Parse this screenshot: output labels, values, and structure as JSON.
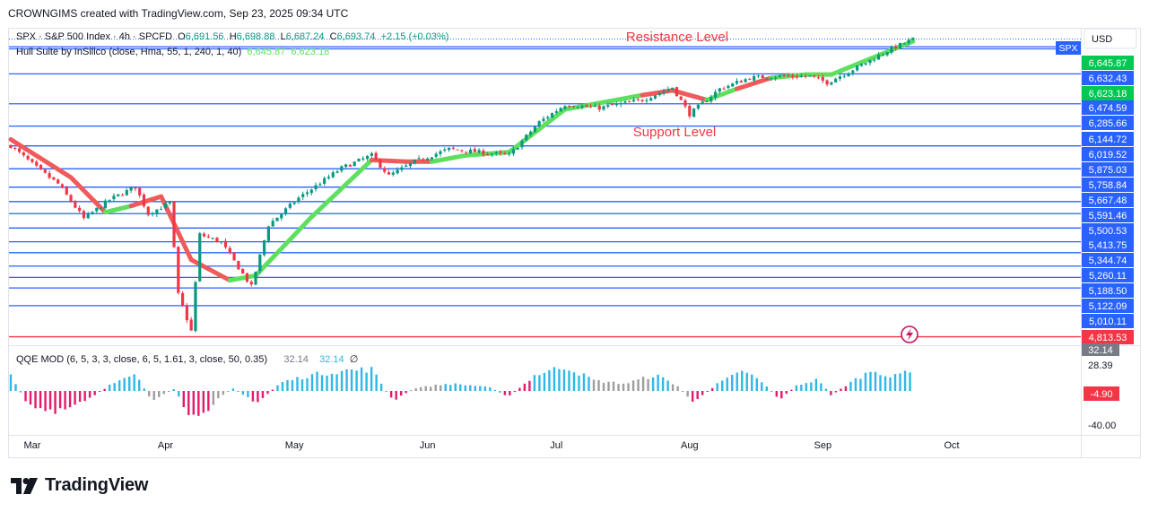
{
  "header": {
    "text": "CROWNGIMS created with TradingView.com, Sep 23, 2025 09:34 UTC"
  },
  "legend": {
    "symbol_desc": "SPX · S&P 500 Index · 4h · SPCFD",
    "o_label": "O",
    "o_value": "6,691.56",
    "h_label": "H",
    "h_value": "6,698.88",
    "l_label": "L",
    "l_value": "6,687.24",
    "c_label": "C",
    "c_value": "6,693.74",
    "change": "+2.15 (+0.03%)",
    "hull_name": "Hull Suite by InSilico (close, Hma, 55, 1, 240, 1, 40)",
    "hull_v1": "6,645.87",
    "hull_v2": "6,623.18",
    "qqe_name": "QQE MOD (6, 5, 3, 3, close, 6, 5, 1.61, 3, close, 50, 0.35)",
    "qqe_v1": "32.14",
    "qqe_v2": "32.14",
    "qqe_v3": "∅"
  },
  "annotations": {
    "resistance": "Resistance Level",
    "support": "Support Level"
  },
  "price_axis": {
    "currency": "USD",
    "symbol_tag": "SPX"
  },
  "colors": {
    "up": "#089981",
    "down": "#f23645",
    "level": "#2962ff",
    "hull_up": "#5ee05e",
    "hull_down": "#f05a5a",
    "qqe_up": "#2eb8e6",
    "qqe_down": "#e6196b",
    "qqe_neutral": "#9e9e9e",
    "red_line": "#f23645",
    "label_green": "#00c853"
  },
  "footer": {
    "logo_text": "TradingView"
  },
  "chart_data": {
    "type": "candlestick",
    "timeframe": "4h",
    "x_ticks": [
      "Mar",
      "Apr",
      "May",
      "Jun",
      "Jul",
      "Aug",
      "Sep",
      "Oct"
    ],
    "y_range": [
      4760,
      6760
    ],
    "horizontal_levels": [
      6632.43,
      6474.59,
      6285.66,
      6144.72,
      6019.52,
      5875.03,
      5758.84,
      5667.48,
      5591.46,
      5500.53,
      5413.75,
      5344.74,
      5260.11,
      5188.5,
      5122.09,
      5010.11
    ],
    "red_level": 4813.53,
    "price_labels": [
      {
        "value": "6,645.87",
        "style": "green"
      },
      {
        "value": "6,632.43",
        "style": "blue"
      },
      {
        "value": "6,623.18",
        "style": "green"
      },
      {
        "value": "6,474.59",
        "style": "blue"
      },
      {
        "value": "6,285.66",
        "style": "blue"
      },
      {
        "value": "6,144.72",
        "style": "blue"
      },
      {
        "value": "6,019.52",
        "style": "blue"
      },
      {
        "value": "5,875.03",
        "style": "blue"
      },
      {
        "value": "5,758.84",
        "style": "blue"
      },
      {
        "value": "5,667.48",
        "style": "blue"
      },
      {
        "value": "5,591.46",
        "style": "blue"
      },
      {
        "value": "5,500.53",
        "style": "blue"
      },
      {
        "value": "5,413.75",
        "style": "blue"
      },
      {
        "value": "5,344.74",
        "style": "blue"
      },
      {
        "value": "5,260.11",
        "style": "blue"
      },
      {
        "value": "5,188.50",
        "style": "blue"
      },
      {
        "value": "5,122.09",
        "style": "blue"
      },
      {
        "value": "5,010.11",
        "style": "blue"
      },
      {
        "value": "4,813.53",
        "style": "red"
      }
    ],
    "price_path": [
      [
        "2025-02-24",
        6020
      ],
      [
        "2025-03-03",
        5860
      ],
      [
        "2025-03-07",
        5780
      ],
      [
        "2025-03-13",
        5560
      ],
      [
        "2025-03-19",
        5680
      ],
      [
        "2025-03-25",
        5760
      ],
      [
        "2025-03-28",
        5590
      ],
      [
        "2025-04-02",
        5660
      ],
      [
        "2025-04-04",
        5080
      ],
      [
        "2025-04-07",
        4850
      ],
      [
        "2025-04-09",
        5460
      ],
      [
        "2025-04-14",
        5410
      ],
      [
        "2025-04-21",
        5130
      ],
      [
        "2025-04-25",
        5520
      ],
      [
        "2025-05-02",
        5690
      ],
      [
        "2025-05-12",
        5880
      ],
      [
        "2025-05-19",
        5960
      ],
      [
        "2025-05-23",
        5830
      ],
      [
        "2025-05-29",
        5920
      ],
      [
        "2025-06-06",
        6000
      ],
      [
        "2025-06-13",
        5980
      ],
      [
        "2025-06-20",
        5960
      ],
      [
        "2025-06-27",
        6170
      ],
      [
        "2025-07-03",
        6280
      ],
      [
        "2025-07-11",
        6260
      ],
      [
        "2025-07-21",
        6310
      ],
      [
        "2025-07-28",
        6390
      ],
      [
        "2025-08-01",
        6220
      ],
      [
        "2025-08-08",
        6380
      ],
      [
        "2025-08-15",
        6450
      ],
      [
        "2025-08-22",
        6460
      ],
      [
        "2025-08-29",
        6460
      ],
      [
        "2025-09-02",
        6420
      ],
      [
        "2025-09-10",
        6530
      ],
      [
        "2025-09-16",
        6620
      ],
      [
        "2025-09-22",
        6694
      ]
    ],
    "hull_path": [
      [
        "2025-02-24",
        6060,
        "down"
      ],
      [
        "2025-03-10",
        5820,
        "down"
      ],
      [
        "2025-03-18",
        5600,
        "down"
      ],
      [
        "2025-03-24",
        5640,
        "up"
      ],
      [
        "2025-03-31",
        5700,
        "down"
      ],
      [
        "2025-04-07",
        5300,
        "down"
      ],
      [
        "2025-04-16",
        5170,
        "down"
      ],
      [
        "2025-04-22",
        5200,
        "up"
      ],
      [
        "2025-05-05",
        5570,
        "up"
      ],
      [
        "2025-05-19",
        5930,
        "up"
      ],
      [
        "2025-05-27",
        5920,
        "down"
      ],
      [
        "2025-06-02",
        5920,
        "down"
      ],
      [
        "2025-06-10",
        5960,
        "up"
      ],
      [
        "2025-06-20",
        5980,
        "up"
      ],
      [
        "2025-07-03",
        6250,
        "up"
      ],
      [
        "2025-07-21",
        6340,
        "up"
      ],
      [
        "2025-07-28",
        6370,
        "down"
      ],
      [
        "2025-08-05",
        6310,
        "down"
      ],
      [
        "2025-08-12",
        6380,
        "up"
      ],
      [
        "2025-08-20",
        6450,
        "down"
      ],
      [
        "2025-08-28",
        6470,
        "up"
      ],
      [
        "2025-09-03",
        6470,
        "up"
      ],
      [
        "2025-09-22",
        6680,
        "up"
      ]
    ],
    "qqe": {
      "y_ticks": [
        "28.39",
        "-40.00"
      ],
      "labels": [
        {
          "value": "32.14",
          "style": "grey"
        },
        {
          "value": "-4.90",
          "style": "pink"
        }
      ],
      "phases": [
        [
          "2025-02-24",
          20,
          "up"
        ],
        [
          "2025-02-28",
          -18,
          "down"
        ],
        [
          "2025-03-06",
          -32,
          "down"
        ],
        [
          "2025-03-14",
          -12,
          "down"
        ],
        [
          "2025-03-19",
          8,
          "up"
        ],
        [
          "2025-03-25",
          22,
          "up"
        ],
        [
          "2025-03-29",
          -14,
          "neutral"
        ],
        [
          "2025-04-03",
          3,
          "up"
        ],
        [
          "2025-04-06",
          -30,
          "down"
        ],
        [
          "2025-04-09",
          -42,
          "down"
        ],
        [
          "2025-04-13",
          -10,
          "neutral"
        ],
        [
          "2025-04-17",
          4,
          "up"
        ],
        [
          "2025-04-22",
          -18,
          "down"
        ],
        [
          "2025-04-28",
          12,
          "up"
        ],
        [
          "2025-05-05",
          22,
          "up"
        ],
        [
          "2025-05-12",
          28,
          "up"
        ],
        [
          "2025-05-19",
          30,
          "up"
        ],
        [
          "2025-05-24",
          -14,
          "down"
        ],
        [
          "2025-05-29",
          4,
          "neutral"
        ],
        [
          "2025-06-06",
          10,
          "up"
        ],
        [
          "2025-06-15",
          6,
          "up"
        ],
        [
          "2025-06-20",
          -8,
          "down"
        ],
        [
          "2025-06-26",
          22,
          "up"
        ],
        [
          "2025-07-03",
          34,
          "up"
        ],
        [
          "2025-07-10",
          14,
          "neutral"
        ],
        [
          "2025-07-17",
          10,
          "neutral"
        ],
        [
          "2025-07-24",
          22,
          "up"
        ],
        [
          "2025-07-29",
          8,
          "neutral"
        ],
        [
          "2025-08-02",
          -16,
          "down"
        ],
        [
          "2025-08-08",
          12,
          "up"
        ],
        [
          "2025-08-14",
          28,
          "up"
        ],
        [
          "2025-08-19",
          6,
          "up"
        ],
        [
          "2025-08-22",
          -12,
          "down"
        ],
        [
          "2025-08-26",
          8,
          "up"
        ],
        [
          "2025-08-31",
          16,
          "up"
        ],
        [
          "2025-09-03",
          -6,
          "down"
        ],
        [
          "2025-09-08",
          14,
          "up"
        ],
        [
          "2025-09-13",
          30,
          "up"
        ],
        [
          "2025-09-17",
          18,
          "up"
        ],
        [
          "2025-09-22",
          32,
          "up"
        ]
      ]
    }
  }
}
